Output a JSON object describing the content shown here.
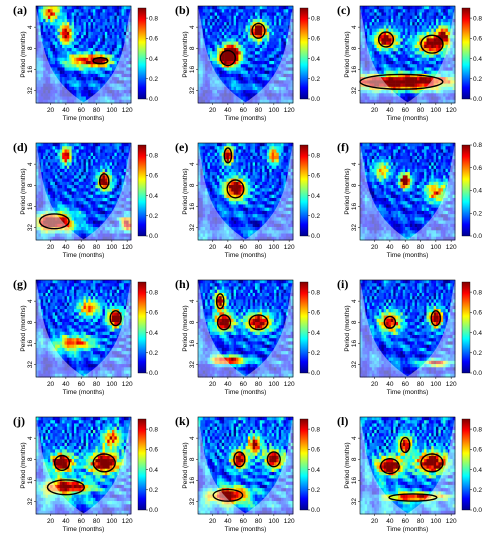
{
  "colorscale": {
    "stops": [
      "#00008f",
      "#0000ff",
      "#0080ff",
      "#00ffff",
      "#80ff80",
      "#ffff00",
      "#ff8000",
      "#ff0000",
      "#800000"
    ],
    "cone_fill": "#ffffff",
    "contour_color": "#000000"
  },
  "chart_data": [
    {
      "type": "heatmap",
      "panel_label": "(a)",
      "xlabel": "Time (months)",
      "ylabel": "Period (months)",
      "x_ticks": [
        20,
        40,
        60,
        80,
        100,
        120
      ],
      "y_ticks": [
        4,
        8,
        16,
        32
      ],
      "xlim": [
        1,
        125
      ],
      "ylim": [
        2,
        48
      ],
      "colorbar_ticks": [
        0.0,
        0.2,
        0.4,
        0.6,
        0.8
      ],
      "colorbar_range": [
        0,
        0.9
      ],
      "background_power": 0.3,
      "features": [
        {
          "x": 40,
          "period": 5,
          "sx": 6,
          "sp": 0.35,
          "power": 0.75
        },
        {
          "x": 60,
          "period": 12,
          "sx": 14,
          "sp": 0.25,
          "power": 0.55
        },
        {
          "x": 85,
          "period": 12,
          "sx": 10,
          "sp": 0.2,
          "power": 0.75
        },
        {
          "x": 20,
          "period": 2.5,
          "sx": 8,
          "sp": 0.3,
          "power": 0.6
        }
      ],
      "significant_regions": [
        {
          "x": 85,
          "period": 12,
          "sx": 8,
          "sp": 0.1
        }
      ]
    },
    {
      "type": "heatmap",
      "panel_label": "(b)",
      "xlabel": "Time (months)",
      "ylabel": "Period (months)",
      "x_ticks": [
        20,
        40,
        60,
        80,
        100,
        120
      ],
      "y_ticks": [
        4,
        8,
        16,
        32
      ],
      "xlim": [
        1,
        125
      ],
      "ylim": [
        2,
        48
      ],
      "colorbar_ticks": [
        0.0,
        0.2,
        0.4,
        0.6,
        0.8
      ],
      "colorbar_range": [
        0,
        0.9
      ],
      "background_power": 0.3,
      "features": [
        {
          "x": 80,
          "period": 4.5,
          "sx": 8,
          "sp": 0.3,
          "power": 0.9
        },
        {
          "x": 40,
          "period": 11,
          "sx": 10,
          "sp": 0.3,
          "power": 0.8
        },
        {
          "x": 45,
          "period": 9,
          "sx": 8,
          "sp": 0.3,
          "power": 0.7
        }
      ],
      "significant_regions": [
        {
          "x": 80,
          "period": 4.5,
          "sx": 7,
          "sp": 0.25
        },
        {
          "x": 40,
          "period": 11,
          "sx": 8,
          "sp": 0.25
        }
      ]
    },
    {
      "type": "heatmap",
      "panel_label": "(c)",
      "xlabel": "Time (months)",
      "ylabel": "Period (months)",
      "x_ticks": [
        20,
        40,
        60,
        80,
        100,
        120
      ],
      "y_ticks": [
        4,
        8,
        16,
        32
      ],
      "xlim": [
        1,
        125
      ],
      "ylim": [
        2,
        48
      ],
      "colorbar_ticks": [
        0.0,
        0.2,
        0.4,
        0.6,
        0.8
      ],
      "colorbar_range": [
        0,
        0.9
      ],
      "background_power": 0.3,
      "features": [
        {
          "x": 35,
          "period": 6,
          "sx": 10,
          "sp": 0.3,
          "power": 0.85
        },
        {
          "x": 95,
          "period": 7,
          "sx": 14,
          "sp": 0.35,
          "power": 0.8
        },
        {
          "x": 55,
          "period": 24,
          "sx": 50,
          "sp": 0.25,
          "power": 0.95
        },
        {
          "x": 110,
          "period": 5,
          "sx": 6,
          "sp": 0.3,
          "power": 0.6
        }
      ],
      "significant_regions": [
        {
          "x": 35,
          "period": 6,
          "sx": 8,
          "sp": 0.25
        },
        {
          "x": 95,
          "period": 7,
          "sx": 12,
          "sp": 0.3
        },
        {
          "x": 55,
          "period": 24,
          "sx": 45,
          "sp": 0.25
        }
      ]
    },
    {
      "type": "heatmap",
      "panel_label": "(d)",
      "xlabel": "Time (months)",
      "ylabel": "Period (months)",
      "x_ticks": [
        20,
        40,
        60,
        80,
        100,
        120
      ],
      "y_ticks": [
        4,
        8,
        16,
        32
      ],
      "xlim": [
        1,
        125
      ],
      "ylim": [
        2,
        48
      ],
      "colorbar_ticks": [
        0.0,
        0.2,
        0.4,
        0.6,
        0.8
      ],
      "colorbar_range": [
        0,
        0.9
      ],
      "background_power": 0.3,
      "features": [
        {
          "x": 90,
          "period": 7,
          "sx": 6,
          "sp": 0.3,
          "power": 0.85
        },
        {
          "x": 25,
          "period": 26,
          "sx": 18,
          "sp": 0.3,
          "power": 0.9
        },
        {
          "x": 40,
          "period": 3,
          "sx": 5,
          "sp": 0.3,
          "power": 0.7
        },
        {
          "x": 120,
          "period": 28,
          "sx": 6,
          "sp": 0.25,
          "power": 0.7
        }
      ],
      "significant_regions": [
        {
          "x": 90,
          "period": 7,
          "sx": 5,
          "sp": 0.25
        },
        {
          "x": 25,
          "period": 26,
          "sx": 16,
          "sp": 0.25
        }
      ]
    },
    {
      "type": "heatmap",
      "panel_label": "(e)",
      "xlabel": "Time (months)",
      "ylabel": "Period (months)",
      "x_ticks": [
        20,
        40,
        60,
        80,
        100,
        120
      ],
      "y_ticks": [
        4,
        8,
        16,
        32
      ],
      "xlim": [
        1,
        125
      ],
      "ylim": [
        2,
        48
      ],
      "colorbar_ticks": [
        0.0,
        0.2,
        0.4,
        0.6,
        0.8
      ],
      "colorbar_range": [
        0,
        0.9
      ],
      "background_power": 0.3,
      "features": [
        {
          "x": 50,
          "period": 9,
          "sx": 10,
          "sp": 0.35,
          "power": 0.9
        },
        {
          "x": 40,
          "period": 3,
          "sx": 5,
          "sp": 0.3,
          "power": 0.8
        },
        {
          "x": 100,
          "period": 3,
          "sx": 5,
          "sp": 0.3,
          "power": 0.6
        }
      ],
      "significant_regions": [
        {
          "x": 50,
          "period": 9,
          "sx": 9,
          "sp": 0.3
        },
        {
          "x": 40,
          "period": 3,
          "sx": 4,
          "sp": 0.25
        }
      ]
    },
    {
      "type": "heatmap",
      "panel_label": "(f)",
      "xlabel": "Time (months)",
      "ylabel": "Period (months)",
      "x_ticks": [
        20,
        40,
        60,
        80,
        100,
        120
      ],
      "y_ticks": [
        4,
        8,
        16,
        32
      ],
      "xlim": [
        1,
        125
      ],
      "ylim": [
        2,
        48
      ],
      "colorbar_ticks": [
        0.0,
        0.2,
        0.4,
        0.6,
        0.8
      ],
      "colorbar_range": [
        0,
        0.8
      ],
      "background_power": 0.25,
      "features": [
        {
          "x": 60,
          "period": 7,
          "sx": 5,
          "sp": 0.25,
          "power": 0.85
        },
        {
          "x": 100,
          "period": 10,
          "sx": 10,
          "sp": 0.35,
          "power": 0.5
        },
        {
          "x": 30,
          "period": 5,
          "sx": 8,
          "sp": 0.3,
          "power": 0.4
        }
      ],
      "significant_regions": []
    },
    {
      "type": "heatmap",
      "panel_label": "(g)",
      "xlabel": "Time (months)",
      "ylabel": "Period (months)",
      "x_ticks": [
        20,
        40,
        60,
        80,
        100,
        120
      ],
      "y_ticks": [
        4,
        8,
        16,
        32
      ],
      "xlim": [
        1,
        125
      ],
      "ylim": [
        2,
        48
      ],
      "colorbar_ticks": [
        0.0,
        0.2,
        0.4,
        0.6,
        0.8
      ],
      "colorbar_range": [
        0,
        0.9
      ],
      "background_power": 0.3,
      "features": [
        {
          "x": 105,
          "period": 7,
          "sx": 7,
          "sp": 0.3,
          "power": 0.9
        },
        {
          "x": 50,
          "period": 16,
          "sx": 18,
          "sp": 0.25,
          "power": 0.6
        },
        {
          "x": 70,
          "period": 5,
          "sx": 10,
          "sp": 0.3,
          "power": 0.55
        }
      ],
      "significant_regions": [
        {
          "x": 105,
          "period": 7,
          "sx": 6,
          "sp": 0.25
        }
      ]
    },
    {
      "type": "heatmap",
      "panel_label": "(h)",
      "xlabel": "Time (months)",
      "ylabel": "Period (months)",
      "x_ticks": [
        20,
        40,
        60,
        80,
        100,
        120
      ],
      "y_ticks": [
        4,
        8,
        16,
        32
      ],
      "xlim": [
        1,
        125
      ],
      "ylim": [
        2,
        48
      ],
      "colorbar_ticks": [
        0.0,
        0.2,
        0.4,
        0.6,
        0.8
      ],
      "colorbar_range": [
        0,
        0.9
      ],
      "background_power": 0.3,
      "features": [
        {
          "x": 35,
          "period": 8,
          "sx": 9,
          "sp": 0.3,
          "power": 0.85
        },
        {
          "x": 80,
          "period": 8,
          "sx": 12,
          "sp": 0.3,
          "power": 0.8
        },
        {
          "x": 30,
          "period": 4,
          "sx": 5,
          "sp": 0.3,
          "power": 0.8
        },
        {
          "x": 40,
          "period": 28,
          "sx": 16,
          "sp": 0.15,
          "power": 0.7
        }
      ],
      "significant_regions": [
        {
          "x": 35,
          "period": 8,
          "sx": 7,
          "sp": 0.25
        },
        {
          "x": 80,
          "period": 8,
          "sx": 10,
          "sp": 0.25
        },
        {
          "x": 30,
          "period": 4,
          "sx": 4,
          "sp": 0.25
        }
      ]
    },
    {
      "type": "heatmap",
      "panel_label": "(i)",
      "xlabel": "Time (months)",
      "ylabel": "Period (months)",
      "x_ticks": [
        20,
        40,
        60,
        80,
        100,
        120
      ],
      "y_ticks": [
        4,
        8,
        16,
        32
      ],
      "xlim": [
        1,
        125
      ],
      "ylim": [
        2,
        48
      ],
      "colorbar_ticks": [
        0.0,
        0.2,
        0.4,
        0.6,
        0.8
      ],
      "colorbar_range": [
        0,
        0.9
      ],
      "background_power": 0.3,
      "features": [
        {
          "x": 100,
          "period": 7,
          "sx": 6,
          "sp": 0.3,
          "power": 0.9
        },
        {
          "x": 40,
          "period": 8,
          "sx": 10,
          "sp": 0.35,
          "power": 0.7
        },
        {
          "x": 100,
          "period": 30,
          "sx": 12,
          "sp": 0.12,
          "power": 0.6
        }
      ],
      "significant_regions": [
        {
          "x": 100,
          "period": 7,
          "sx": 5,
          "sp": 0.25
        },
        {
          "x": 40,
          "period": 8,
          "sx": 6,
          "sp": 0.2
        }
      ]
    },
    {
      "type": "heatmap",
      "panel_label": "(j)",
      "xlabel": "Time (months)",
      "ylabel": "Period (months)",
      "x_ticks": [
        20,
        40,
        60,
        80,
        100,
        120
      ],
      "y_ticks": [
        4,
        8,
        16,
        32
      ],
      "xlim": [
        1,
        125
      ],
      "ylim": [
        2,
        48
      ],
      "colorbar_ticks": [
        0.0,
        0.2,
        0.4,
        0.6,
        0.8
      ],
      "colorbar_range": [
        0,
        0.9
      ],
      "background_power": 0.35,
      "features": [
        {
          "x": 35,
          "period": 9,
          "sx": 10,
          "sp": 0.3,
          "power": 0.9
        },
        {
          "x": 90,
          "period": 9,
          "sx": 14,
          "sp": 0.35,
          "power": 0.85
        },
        {
          "x": 40,
          "period": 20,
          "sx": 22,
          "sp": 0.25,
          "power": 0.8
        },
        {
          "x": 100,
          "period": 4,
          "sx": 8,
          "sp": 0.3,
          "power": 0.6
        }
      ],
      "significant_regions": [
        {
          "x": 35,
          "period": 9,
          "sx": 8,
          "sp": 0.25
        },
        {
          "x": 90,
          "period": 9,
          "sx": 12,
          "sp": 0.3
        },
        {
          "x": 40,
          "period": 20,
          "sx": 20,
          "sp": 0.25
        }
      ]
    },
    {
      "type": "heatmap",
      "panel_label": "(k)",
      "xlabel": "Time (months)",
      "ylabel": "Period (months)",
      "x_ticks": [
        20,
        40,
        60,
        80,
        100,
        120
      ],
      "y_ticks": [
        4,
        8,
        16,
        32
      ],
      "xlim": [
        1,
        125
      ],
      "ylim": [
        2,
        48
      ],
      "colorbar_ticks": [
        0.0,
        0.2,
        0.4,
        0.6,
        0.8
      ],
      "colorbar_range": [
        0,
        0.9
      ],
      "background_power": 0.35,
      "features": [
        {
          "x": 55,
          "period": 8,
          "sx": 7,
          "sp": 0.3,
          "power": 0.85
        },
        {
          "x": 100,
          "period": 8,
          "sx": 8,
          "sp": 0.3,
          "power": 0.8
        },
        {
          "x": 40,
          "period": 26,
          "sx": 18,
          "sp": 0.25,
          "power": 0.9
        },
        {
          "x": 75,
          "period": 5,
          "sx": 6,
          "sp": 0.3,
          "power": 0.7
        }
      ],
      "significant_regions": [
        {
          "x": 55,
          "period": 8,
          "sx": 6,
          "sp": 0.25
        },
        {
          "x": 100,
          "period": 8,
          "sx": 7,
          "sp": 0.25
        },
        {
          "x": 40,
          "period": 26,
          "sx": 16,
          "sp": 0.2
        }
      ]
    },
    {
      "type": "heatmap",
      "panel_label": "(l)",
      "xlabel": "Time (months)",
      "ylabel": "Period (months)",
      "x_ticks": [
        20,
        40,
        60,
        80,
        100,
        120
      ],
      "y_ticks": [
        4,
        8,
        16,
        32
      ],
      "xlim": [
        1,
        125
      ],
      "ylim": [
        2,
        48
      ],
      "colorbar_ticks": [
        0.0,
        0.2,
        0.4,
        0.6,
        0.8
      ],
      "colorbar_range": [
        0,
        0.9
      ],
      "background_power": 0.35,
      "features": [
        {
          "x": 40,
          "period": 10,
          "sx": 12,
          "sp": 0.3,
          "power": 0.85
        },
        {
          "x": 95,
          "period": 9,
          "sx": 14,
          "sp": 0.35,
          "power": 0.85
        },
        {
          "x": 60,
          "period": 5,
          "sx": 6,
          "sp": 0.3,
          "power": 0.75
        },
        {
          "x": 70,
          "period": 28,
          "sx": 30,
          "sp": 0.15,
          "power": 0.7
        }
      ],
      "significant_regions": [
        {
          "x": 40,
          "period": 10,
          "sx": 10,
          "sp": 0.25
        },
        {
          "x": 95,
          "period": 9,
          "sx": 12,
          "sp": 0.3
        },
        {
          "x": 60,
          "period": 5,
          "sx": 5,
          "sp": 0.25
        },
        {
          "x": 70,
          "period": 28,
          "sx": 26,
          "sp": 0.12
        }
      ]
    }
  ]
}
